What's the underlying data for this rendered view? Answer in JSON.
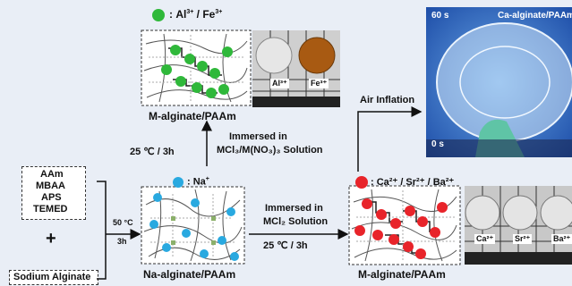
{
  "reagents": [
    "AAm",
    "MBAA",
    "APS",
    "TEMED"
  ],
  "plus": "+",
  "sodium_alginate": "Sodium Alginate",
  "step1": {
    "temp": "50 °C",
    "time": "3h"
  },
  "na_legend": {
    "ion": "Na",
    "charge": "+"
  },
  "na_label": "Na-alginate/PAAm",
  "top_legend": {
    "ion1": "Al",
    "charge1": "3+",
    "sep": " / ",
    "ion2": "Fe",
    "charge2": "3+"
  },
  "top_label": "M-alginate/PAAm",
  "immersed_up": {
    "line1": "Immersed in",
    "line2": "MCl₃/M(NO₃)₃ Solution",
    "cond": "25 ℃ / 3h"
  },
  "immersed_right": {
    "line1": "Immersed in",
    "line2": "MCl₂ Solution",
    "cond": "25 ℃ / 3h"
  },
  "right_legend": "Ca²⁺ / Sr²⁺ / Ba²⁺",
  "right_label": "M-alginate/PAAm",
  "air_inflation": "Air Inflation",
  "photo_top_labels": [
    "Al³⁺",
    "Fe³⁺"
  ],
  "photo_bottom_labels": [
    "Ca²⁺",
    "Sr²⁺",
    "Ba²⁺"
  ],
  "inflation_photo": {
    "time_top": "60 s",
    "time_bottom": "0 s",
    "title": "Ca-alginate/PAAm"
  },
  "colors": {
    "green": "#2fb83a",
    "cyan": "#29a9e0",
    "red": "#e8242a",
    "gel_orange": "#a85a12"
  }
}
